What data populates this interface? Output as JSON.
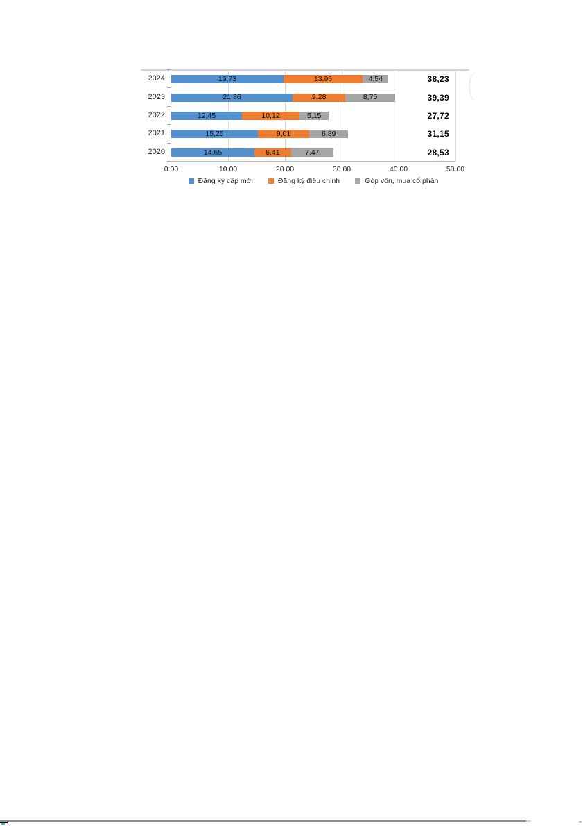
{
  "chart_data": {
    "type": "bar",
    "orientation": "horizontal",
    "stacked": true,
    "title": "",
    "xlabel": "",
    "ylabel": "",
    "categories": [
      "2024",
      "2023",
      "2022",
      "2021",
      "2020"
    ],
    "series": [
      {
        "name": "Đăng ký cấp mới",
        "color": "#5591CE",
        "values": [
          19.73,
          21.36,
          12.45,
          15.25,
          14.65
        ],
        "labels": [
          "19,73",
          "21,36",
          "12,45",
          "15,25",
          "14,65"
        ]
      },
      {
        "name": "Đăng ký điều chỉnh",
        "color": "#ED7D31",
        "values": [
          13.96,
          9.28,
          10.12,
          9.01,
          6.41
        ],
        "labels": [
          "13,96",
          "9,28",
          "10,12",
          "9,01",
          "6,41"
        ]
      },
      {
        "name": "Góp vốn, mua cổ phần",
        "color": "#A6A6A6",
        "values": [
          4.54,
          8.75,
          5.15,
          6.89,
          7.47
        ],
        "labels": [
          "4,54",
          "8,75",
          "5,15",
          "6,89",
          "7,47"
        ]
      }
    ],
    "totals": [
      "38,23",
      "39,39",
      "27,72",
      "31,15",
      "28,53"
    ],
    "x_ticks": [
      "0.00",
      "10.00",
      "20.00",
      "30.00",
      "40.00",
      "50.00"
    ],
    "xlim": [
      0,
      50
    ],
    "grid": true,
    "legend_position": "bottom"
  },
  "page": {
    "artifacts": {
      "bottom_rule_color": "#8c8c8c",
      "bottom_left_mark_color": "#000000",
      "bottom_left_mark_accent": "#00d8e8",
      "right_dot_color": "#bdbdbd"
    }
  }
}
